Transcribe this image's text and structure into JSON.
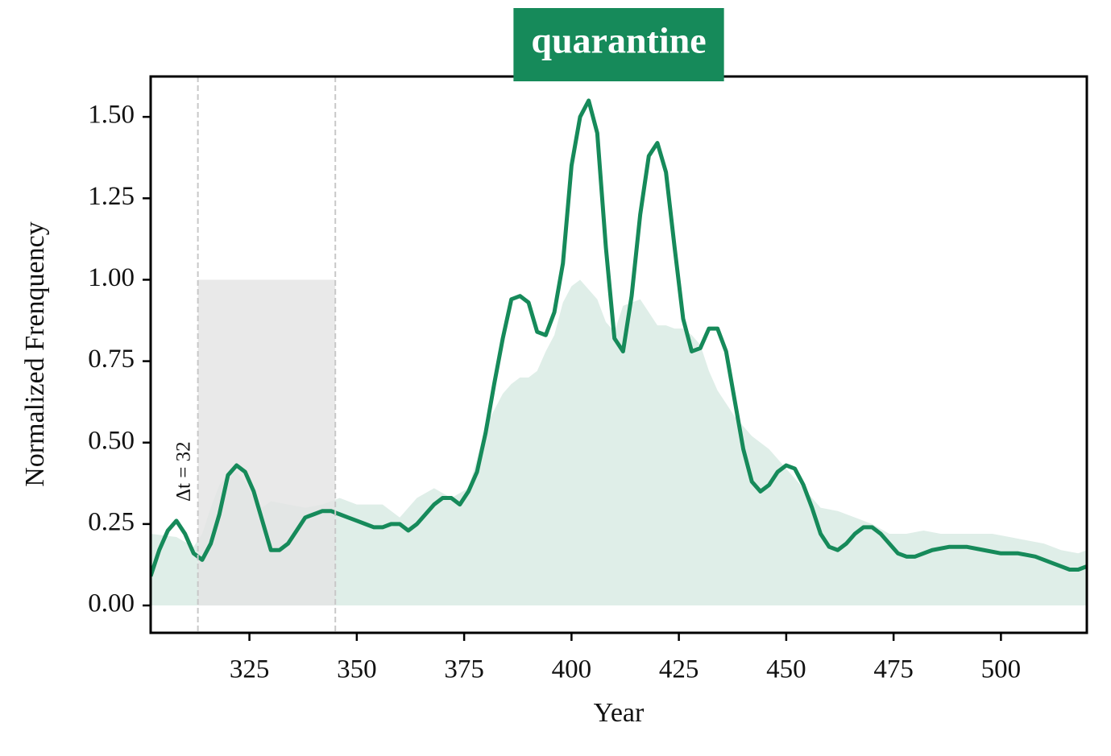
{
  "chart_data": {
    "type": "line",
    "title": "quarantine",
    "title_color": "#168a5a",
    "xlabel": "Year",
    "ylabel": "Normalized Frenquency",
    "xlim": [
      302,
      520
    ],
    "ylim": [
      -0.084,
      1.624
    ],
    "xticks": [
      325,
      350,
      375,
      400,
      425,
      450,
      475,
      500
    ],
    "yticks": [
      {
        "value": 0,
        "label": "0.00"
      },
      {
        "value": 0.25,
        "label": "0.25"
      },
      {
        "value": 0.5,
        "label": "0.50"
      },
      {
        "value": 0.75,
        "label": "0.75"
      },
      {
        "value": 1,
        "label": "1.00"
      },
      {
        "value": 1.25,
        "label": "1.25"
      },
      {
        "value": 1.5,
        "label": "1.50"
      }
    ],
    "annotation": {
      "text": "Δt = 32",
      "x0": 313,
      "x1": 345,
      "y0": 0,
      "y1": 1.0,
      "color": "#e4e4e4"
    },
    "series": [
      {
        "type": "area",
        "color": "#dfeee8",
        "x": [
          302,
          308,
          312,
          314,
          316,
          318,
          320,
          322,
          324,
          326,
          328,
          330,
          334,
          338,
          342,
          346,
          350,
          356,
          360,
          364,
          368,
          372,
          376,
          378,
          380,
          384,
          386,
          388,
          390,
          392,
          394,
          396,
          398,
          400,
          402,
          404,
          406,
          408,
          410,
          412,
          414,
          416,
          418,
          420,
          422,
          424,
          426,
          428,
          430,
          432,
          434,
          436,
          438,
          440,
          442,
          444,
          446,
          448,
          450,
          454,
          458,
          462,
          466,
          470,
          474,
          478,
          482,
          486,
          490,
          494,
          498,
          502,
          506,
          510,
          514,
          518,
          520
        ],
        "values": [
          0.22,
          0.21,
          0.18,
          0.22,
          0.3,
          0.37,
          0.4,
          0.41,
          0.38,
          0.33,
          0.3,
          0.32,
          0.31,
          0.3,
          0.31,
          0.33,
          0.31,
          0.31,
          0.27,
          0.33,
          0.36,
          0.33,
          0.36,
          0.45,
          0.55,
          0.65,
          0.68,
          0.7,
          0.7,
          0.72,
          0.78,
          0.83,
          0.93,
          0.98,
          1.0,
          0.97,
          0.94,
          0.87,
          0.84,
          0.92,
          0.93,
          0.94,
          0.9,
          0.86,
          0.86,
          0.85,
          0.85,
          0.83,
          0.8,
          0.72,
          0.66,
          0.62,
          0.58,
          0.55,
          0.52,
          0.5,
          0.48,
          0.45,
          0.42,
          0.36,
          0.3,
          0.29,
          0.27,
          0.25,
          0.22,
          0.22,
          0.23,
          0.22,
          0.22,
          0.22,
          0.22,
          0.21,
          0.2,
          0.19,
          0.17,
          0.16,
          0.17
        ]
      },
      {
        "type": "line",
        "color": "#168a5a",
        "x": [
          302,
          304,
          306,
          308,
          310,
          312,
          314,
          316,
          318,
          320,
          322,
          324,
          326,
          328,
          330,
          332,
          334,
          336,
          338,
          340,
          342,
          344,
          346,
          348,
          350,
          352,
          354,
          356,
          358,
          360,
          362,
          364,
          366,
          368,
          370,
          372,
          374,
          376,
          378,
          380,
          382,
          384,
          386,
          388,
          390,
          392,
          394,
          396,
          398,
          400,
          402,
          404,
          406,
          408,
          410,
          412,
          414,
          416,
          418,
          420,
          422,
          424,
          426,
          428,
          430,
          432,
          434,
          436,
          438,
          440,
          442,
          444,
          446,
          448,
          450,
          452,
          454,
          456,
          458,
          460,
          462,
          464,
          466,
          468,
          470,
          472,
          474,
          476,
          478,
          480,
          484,
          488,
          492,
          496,
          500,
          504,
          508,
          512,
          514,
          516,
          518,
          520
        ],
        "values": [
          0.09,
          0.17,
          0.23,
          0.26,
          0.22,
          0.16,
          0.14,
          0.19,
          0.28,
          0.4,
          0.43,
          0.41,
          0.35,
          0.26,
          0.17,
          0.17,
          0.19,
          0.23,
          0.27,
          0.28,
          0.29,
          0.29,
          0.28,
          0.27,
          0.26,
          0.25,
          0.24,
          0.24,
          0.25,
          0.25,
          0.23,
          0.25,
          0.28,
          0.31,
          0.33,
          0.33,
          0.31,
          0.35,
          0.41,
          0.53,
          0.68,
          0.82,
          0.94,
          0.95,
          0.93,
          0.84,
          0.83,
          0.9,
          1.05,
          1.35,
          1.5,
          1.55,
          1.45,
          1.1,
          0.82,
          0.78,
          0.95,
          1.2,
          1.38,
          1.42,
          1.33,
          1.1,
          0.88,
          0.78,
          0.79,
          0.85,
          0.85,
          0.78,
          0.63,
          0.48,
          0.38,
          0.35,
          0.37,
          0.41,
          0.43,
          0.42,
          0.37,
          0.3,
          0.22,
          0.18,
          0.17,
          0.19,
          0.22,
          0.24,
          0.24,
          0.22,
          0.19,
          0.16,
          0.15,
          0.15,
          0.17,
          0.18,
          0.18,
          0.17,
          0.16,
          0.16,
          0.15,
          0.13,
          0.12,
          0.11,
          0.11,
          0.12
        ]
      }
    ]
  }
}
